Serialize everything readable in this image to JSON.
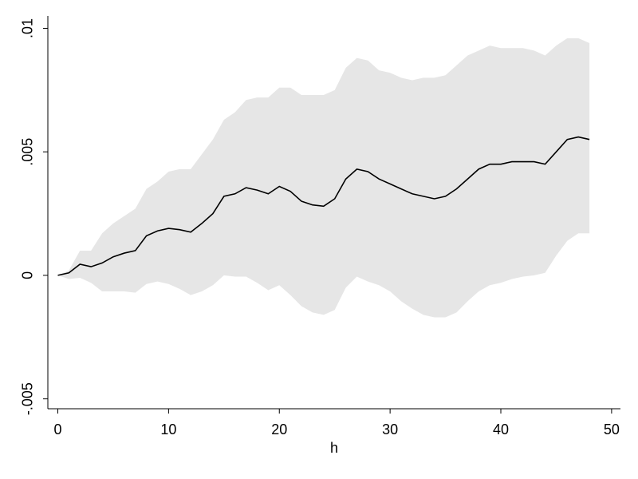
{
  "chart_data": {
    "type": "line",
    "x_label": "h",
    "x": [
      0,
      1,
      2,
      3,
      4,
      5,
      6,
      7,
      8,
      9,
      10,
      11,
      12,
      13,
      14,
      15,
      16,
      17,
      18,
      19,
      20,
      21,
      22,
      23,
      24,
      25,
      26,
      27,
      28,
      29,
      30,
      31,
      32,
      33,
      34,
      35,
      36,
      37,
      38,
      39,
      40,
      41,
      42,
      43,
      44,
      45,
      46,
      47,
      48
    ],
    "values": [
      0,
      0.0001,
      0.00045,
      0.00035,
      0.0005,
      0.00075,
      0.0009,
      0.001,
      0.0016,
      0.0018,
      0.0019,
      0.00185,
      0.00175,
      0.0021,
      0.0025,
      0.0032,
      0.0033,
      0.00355,
      0.00345,
      0.0033,
      0.0036,
      0.0034,
      0.003,
      0.00285,
      0.0028,
      0.0031,
      0.0039,
      0.0043,
      0.0042,
      0.0039,
      0.0037,
      0.0035,
      0.0033,
      0.0032,
      0.0031,
      0.0032,
      0.0035,
      0.0039,
      0.0043,
      0.0045,
      0.0045,
      0.0046,
      0.0046,
      0.0046,
      0.0045,
      0.005,
      0.0055,
      0.0056,
      0.0055
    ],
    "color": "#000000",
    "band": {
      "upper": [
        0,
        0.0002,
        0.001,
        0.001,
        0.0017,
        0.0021,
        0.0024,
        0.0027,
        0.0035,
        0.0038,
        0.0042,
        0.0043,
        0.0043,
        0.0049,
        0.0055,
        0.0063,
        0.0066,
        0.0071,
        0.0072,
        0.0072,
        0.0076,
        0.0076,
        0.0073,
        0.0073,
        0.0073,
        0.0075,
        0.0084,
        0.0088,
        0.0087,
        0.0083,
        0.0082,
        0.008,
        0.0079,
        0.008,
        0.008,
        0.0081,
        0.0085,
        0.0089,
        0.0091,
        0.0093,
        0.0092,
        0.0092,
        0.0092,
        0.0091,
        0.0089,
        0.0093,
        0.0096,
        0.0096,
        0.0094
      ],
      "lower": [
        0,
        -0.00015,
        -0.0001,
        -0.0003,
        -0.00065,
        -0.00065,
        -0.00065,
        -0.0007,
        -0.00035,
        -0.00025,
        -0.00035,
        -0.00055,
        -0.0008,
        -0.00065,
        -0.0004,
        0,
        -5e-05,
        -5e-05,
        -0.0003,
        -0.0006,
        -0.0004,
        -0.0008,
        -0.00125,
        -0.0015,
        -0.0016,
        -0.0014,
        -0.0005,
        -5e-05,
        -0.00025,
        -0.0004,
        -0.00065,
        -0.00105,
        -0.00135,
        -0.0016,
        -0.0017,
        -0.0017,
        -0.0015,
        -0.00105,
        -0.00065,
        -0.0004,
        -0.0003,
        -0.00015,
        -5e-05,
        0,
        0.0001,
        0.0008,
        0.0014,
        0.0017,
        0.0017
      ],
      "color": "#e6e6e6"
    },
    "xlim": [
      -0.9,
      50.8
    ],
    "ylim": [
      -0.0054,
      0.0105
    ],
    "xticks": [
      0,
      10,
      20,
      30,
      40,
      50
    ],
    "yticks": [
      {
        "value": -0.005,
        "label": "-.005"
      },
      0,
      {
        "value": 0.005,
        "label": ".005"
      },
      {
        "value": 0.01,
        "label": ".01"
      }
    ],
    "grid": false
  }
}
